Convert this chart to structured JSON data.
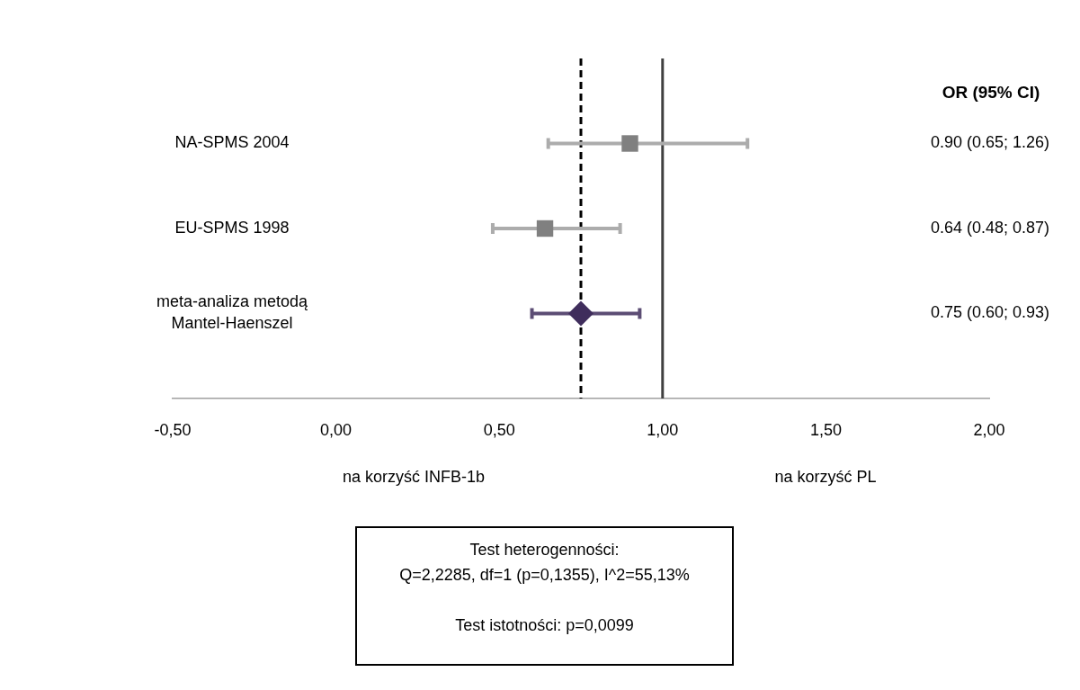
{
  "chart_data": {
    "type": "scatter",
    "orientation": "horizontal",
    "categories": [
      "NA-SPMS 2004",
      "EU-SPMS 1998",
      "meta-analiza metodą Mantel-Haenszel"
    ],
    "series": [
      {
        "color": "#808080",
        "marker": "square",
        "values": [
          0.9,
          0.64,
          null
        ],
        "errors": [
          [
            0.65,
            1.26
          ],
          [
            0.48,
            0.87
          ],
          null
        ]
      },
      {
        "color": "#3f2d5c",
        "marker": "diamond",
        "values": [
          null,
          null,
          0.75
        ],
        "errors": [
          null,
          null,
          [
            0.6,
            0.93
          ]
        ]
      }
    ],
    "xlim": [
      -0.5,
      2
    ],
    "xticks": [
      {
        "value": -0.5,
        "label": "-0,50"
      },
      {
        "value": 0,
        "label": "0,00"
      },
      {
        "value": 0.5,
        "label": "0,50"
      },
      {
        "value": 1,
        "label": "1,00"
      },
      {
        "value": 1.5,
        "label": "1,50"
      },
      {
        "value": 2,
        "label": "2,00"
      }
    ],
    "ref_lines": [
      {
        "axis": "x",
        "value": 1,
        "color": "#404040",
        "line_style": "solid"
      },
      {
        "axis": "x",
        "value": 0.75,
        "color": "#000000",
        "line_style": "dashed"
      }
    ],
    "grid": false,
    "legend": false,
    "annotations": [
      "OR (95% CI)",
      "na korzyść INFB-1b",
      "na korzyść PL",
      "Test heterogenności:",
      "Q=2,2285, df=1 (p=0,1355), I^2=55,13%",
      "Test istotności: p=0,0099",
      "0.90 (0.65; 1.26)",
      "0.64 (0.48; 0.87)",
      "0.75 (0.60; 0.93)"
    ]
  }
}
